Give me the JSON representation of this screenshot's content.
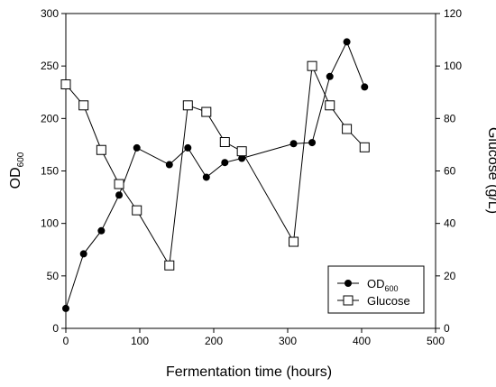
{
  "chart_data": {
    "type": "line",
    "xlabel": "Fermentation time (hours)",
    "ylabel_main": "OD",
    "ylabel_sub": "600",
    "y2label": "Glucose (g/L)",
    "xlim": [
      0,
      500
    ],
    "ylim": [
      0,
      300
    ],
    "y2lim": [
      0,
      120
    ],
    "x_ticks": [
      0,
      100,
      200,
      300,
      400,
      500
    ],
    "y_ticks": [
      0,
      50,
      100,
      150,
      200,
      250,
      300
    ],
    "y2_ticks": [
      0,
      20,
      40,
      60,
      80,
      100,
      120
    ],
    "grid": false,
    "legend_position": "bottom-right",
    "series": [
      {
        "name": "OD600",
        "name_main": "OD",
        "name_sub": "600",
        "axis": "left",
        "marker": "filled-circle",
        "x": [
          0,
          24,
          48,
          72,
          96,
          140,
          165,
          190,
          215,
          238,
          308,
          333,
          357,
          380,
          404
        ],
        "y": [
          19,
          71,
          93,
          127,
          172,
          156,
          172,
          144,
          158,
          162,
          176,
          177,
          240,
          273,
          230
        ]
      },
      {
        "name": "Glucose",
        "axis": "right",
        "marker": "open-square",
        "x": [
          0,
          24,
          48,
          72,
          96,
          140,
          165,
          190,
          215,
          238,
          308,
          333,
          357,
          380,
          404
        ],
        "y": [
          93,
          85,
          68,
          55,
          45,
          24,
          85,
          82.5,
          71,
          67.5,
          33,
          100,
          85,
          76,
          69
        ]
      }
    ]
  }
}
